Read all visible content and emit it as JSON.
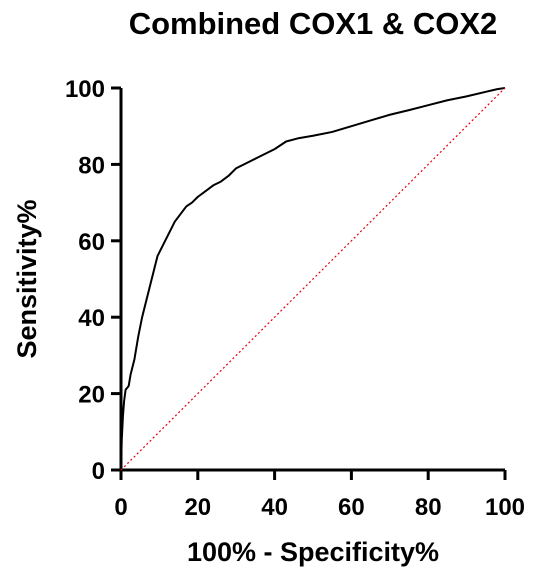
{
  "chart_data": {
    "type": "line",
    "title": "Combined COX1 & COX2",
    "xlabel": "100% - Specificity%",
    "ylabel": "Sensitivity%",
    "xlim": [
      0,
      100
    ],
    "ylim": [
      0,
      100
    ],
    "x_ticks": [
      "0",
      "20",
      "40",
      "60",
      "80",
      "100"
    ],
    "y_ticks": [
      "0",
      "20",
      "40",
      "60",
      "80",
      "100"
    ],
    "grid": false,
    "series": [
      {
        "name": "",
        "color": "#000000",
        "style": "solid",
        "x": [
          0,
          0.2,
          0.5,
          0.8,
          1.2,
          2,
          2.5,
          3.5,
          4.5,
          5.5,
          6.5,
          7.5,
          8.5,
          9.5,
          10.5,
          11.5,
          12.5,
          14,
          15.5,
          17,
          18.5,
          20,
          22,
          24,
          26,
          28,
          30,
          33,
          36,
          40,
          43,
          46,
          50,
          55,
          60,
          65,
          70,
          75,
          80,
          85,
          90,
          95,
          98,
          100
        ],
        "y": [
          0,
          8,
          14,
          18,
          21,
          22,
          25,
          29,
          35,
          40,
          44,
          48,
          52,
          56,
          58,
          60,
          62,
          65,
          67,
          69,
          70,
          71.5,
          73,
          74.5,
          75.5,
          77,
          79,
          80.5,
          82,
          84,
          86,
          86.8,
          87.5,
          88.5,
          90,
          91.5,
          93,
          94.2,
          95.5,
          96.8,
          97.8,
          99,
          99.7,
          100
        ]
      },
      {
        "name": "",
        "color": "#e8000b",
        "style": "dotted",
        "x": [
          0,
          100
        ],
        "y": [
          0,
          100
        ]
      }
    ]
  }
}
